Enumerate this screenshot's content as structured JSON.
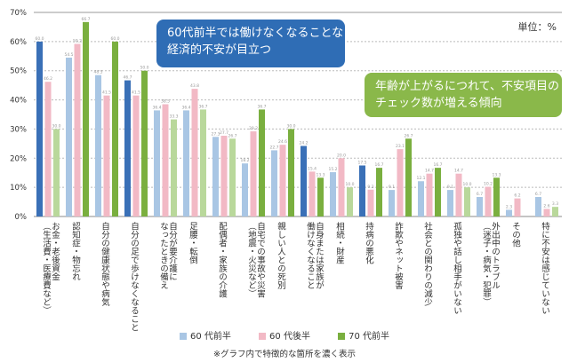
{
  "chart_data": {
    "type": "bar",
    "unit_label": "単位：%",
    "ylim": [
      0,
      70
    ],
    "yticks": [
      "0%",
      "10%",
      "20%",
      "30%",
      "40%",
      "50%",
      "60%",
      "70%"
    ],
    "grid": true,
    "legend_position": "bottom",
    "categories": [
      "お金・老後資金\n（生活費・医療費など）",
      "認知症・物忘れ",
      "自分の健康状態や病気",
      "自分の足で歩けなくなること",
      "自分が要介護に\nなったときの備え",
      "足腰・転倒",
      "配偶者・家族の介護",
      "自宅での事故や災害\n（地震・火災など）",
      "親しい人との死別",
      "自身または家族が\n働けなくなること",
      "相続・財産",
      "持病の悪化",
      "詐欺やネット被害",
      "社会との関わりの減少",
      "孤独や話し相手がいない",
      "外出中のトラブル\n（迷子・病気・犯罪）",
      "その他",
      "特に不安は感じていない"
    ],
    "series": [
      {
        "name": "60 代前半",
        "color": "#a9c6e4",
        "highlight_color": "#3a70b7",
        "values": [
          60.0,
          54.5,
          48.5,
          46.7,
          36.4,
          36.4,
          27.3,
          18.2,
          22.7,
          24.2,
          15.2,
          17.5,
          9.1,
          12.1,
          9.1,
          6.7,
          2.3,
          6.7
        ],
        "highlighted": [
          true,
          false,
          false,
          true,
          false,
          false,
          false,
          false,
          false,
          true,
          false,
          true,
          false,
          false,
          false,
          false,
          false,
          false
        ]
      },
      {
        "name": "60 代後半",
        "color": "#f2b9c5",
        "highlight_color": "#e48ea2",
        "values": [
          46.2,
          59.2,
          41.5,
          41.5,
          38.5,
          43.8,
          27.7,
          29.2,
          24.6,
          15.4,
          20.0,
          9.2,
          23.1,
          14.7,
          14.7,
          10.2,
          6.2,
          2.6
        ],
        "highlighted": [
          false,
          false,
          false,
          false,
          false,
          false,
          false,
          false,
          false,
          false,
          false,
          false,
          false,
          false,
          false,
          false,
          false,
          false
        ]
      },
      {
        "name": "70 代前半",
        "color": "#b9d89b",
        "highlight_color": "#7aaf3f",
        "values": [
          30.0,
          66.7,
          60.0,
          50.0,
          33.3,
          36.7,
          26.7,
          36.7,
          30.0,
          13.3,
          10.0,
          16.7,
          26.7,
          16.7,
          10.0,
          13.3,
          null,
          3.3
        ],
        "highlighted": [
          false,
          true,
          true,
          true,
          false,
          false,
          false,
          true,
          true,
          true,
          false,
          true,
          true,
          true,
          false,
          true,
          false,
          false
        ]
      }
    ],
    "annotations": [
      "60代前半では働けなくなることなど\n経済的不安が目立つ",
      "年齢が上がるにつれて、不安項目の\nチェック数が増える傾向"
    ],
    "note": "※グラフ内で特徴的な箇所を濃く表示"
  }
}
